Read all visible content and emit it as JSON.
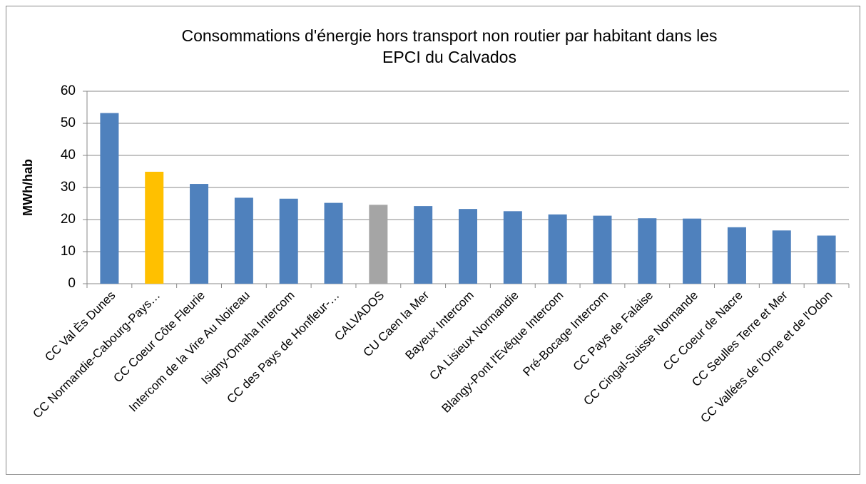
{
  "chart_data": {
    "type": "bar",
    "title": [
      "Consommations d'énergie hors transport non routier par habitant dans les",
      "EPCI du Calvados"
    ],
    "ylabel": "MWh/hab",
    "categories": [
      "CC Val Ès Dunes",
      "CC Normandie-Cabourg-Pays…",
      "CC Coeur Côte Fleurie",
      "Intercom de la Vire Au Noireau",
      "Isigny-Omaha Intercom",
      "CC des Pays de Honfleur-…",
      "CALVADOS",
      "CU Caen la Mer",
      "Bayeux Intercom",
      "CA Lisieux Normandie",
      "Blangy-Pont l'Evêque Intercom",
      "Pré-Bocage Intercom",
      "CC Pays de Falaise",
      "CC Cingal-Suisse Normande",
      "CC Coeur de Nacre",
      "CC Seulles Terre et Mer",
      "CC Vallées de l'Orne et de l'Odon"
    ],
    "values": [
      53.2,
      34.9,
      31.1,
      26.8,
      26.5,
      25.2,
      24.6,
      24.2,
      23.3,
      22.6,
      21.6,
      21.2,
      20.4,
      20.3,
      17.6,
      16.6,
      15.0
    ],
    "colors": [
      "#4f81bd",
      "#ffc000",
      "#4f81bd",
      "#4f81bd",
      "#4f81bd",
      "#4f81bd",
      "#a5a5a5",
      "#4f81bd",
      "#4f81bd",
      "#4f81bd",
      "#4f81bd",
      "#4f81bd",
      "#4f81bd",
      "#4f81bd",
      "#4f81bd",
      "#4f81bd",
      "#4f81bd"
    ],
    "ylim": [
      0,
      60
    ],
    "yticks": [
      0,
      10,
      20,
      30,
      40,
      50,
      60
    ],
    "grid": true
  }
}
